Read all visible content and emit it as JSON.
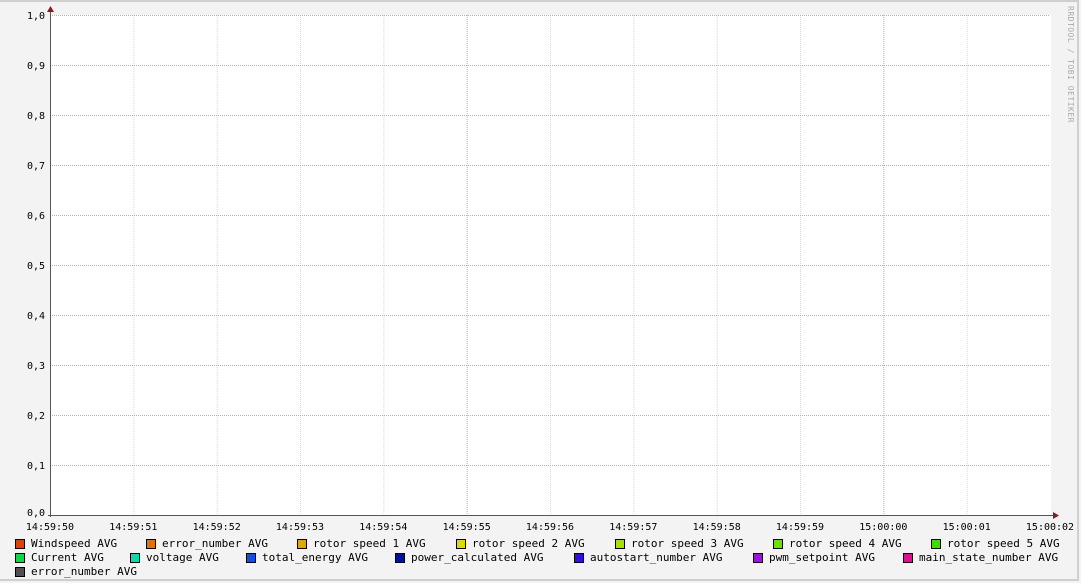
{
  "watermark": "RRDTOOL / TOBI OETIKER",
  "chart_data": {
    "type": "line",
    "title": "",
    "xlabel": "",
    "ylabel": "",
    "ylim": [
      0,
      1
    ],
    "yticks": [
      "0,0",
      "0,1",
      "0,2",
      "0,3",
      "0,4",
      "0,5",
      "0,6",
      "0,7",
      "0,8",
      "0,9",
      "1,0"
    ],
    "xticks": [
      "14:59:50",
      "14:59:51",
      "14:59:52",
      "14:59:53",
      "14:59:54",
      "14:59:55",
      "14:59:56",
      "14:59:57",
      "14:59:58",
      "14:59:59",
      "15:00:00",
      "15:00:01",
      "15:00:02"
    ],
    "major_x": [
      "14:59:55",
      "15:00:00"
    ],
    "grid": true,
    "legend_placement": "bottom",
    "series": [
      {
        "name": "Windspeed AVG",
        "color": "#e0400a",
        "values": []
      },
      {
        "name": "error_number AVG",
        "color": "#e07010",
        "values": []
      },
      {
        "name": "rotor speed 1 AVG",
        "color": "#e0a800",
        "values": []
      },
      {
        "name": "rotor speed 2 AVG",
        "color": "#dcdc00",
        "values": []
      },
      {
        "name": "rotor speed 3 AVG",
        "color": "#a8e000",
        "values": []
      },
      {
        "name": "rotor speed 4 AVG",
        "color": "#70e000",
        "values": []
      },
      {
        "name": "rotor speed 5 AVG",
        "color": "#38e000",
        "values": []
      },
      {
        "name": "Current AVG",
        "color": "#10d840",
        "values": []
      },
      {
        "name": "voltage AVG",
        "color": "#10d8a8",
        "values": []
      },
      {
        "name": "total_energy AVG",
        "color": "#1050e0",
        "values": []
      },
      {
        "name": "power_calculated AVG",
        "color": "#0010a0",
        "values": []
      },
      {
        "name": "autostart_number AVG",
        "color": "#3010e0",
        "values": []
      },
      {
        "name": "pwm_setpoint AVG",
        "color": "#a010e0",
        "values": []
      },
      {
        "name": "main_state_number AVG",
        "color": "#e01090",
        "values": []
      },
      {
        "name": "error_number AVG",
        "color": "#505050",
        "values": []
      }
    ]
  }
}
